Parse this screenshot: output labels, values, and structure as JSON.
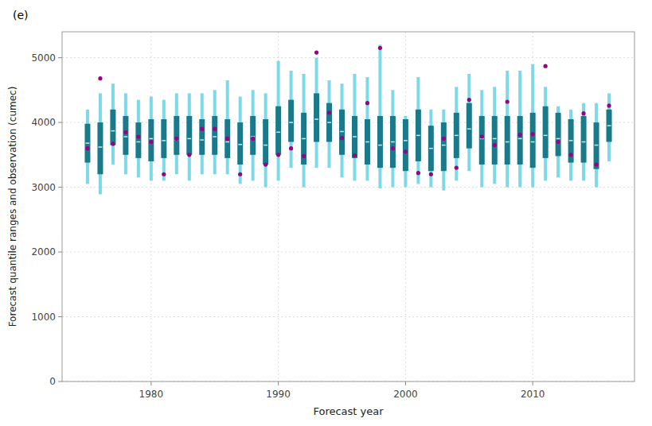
{
  "chart_data": {
    "type": "quantile_range",
    "title": "(e)",
    "x_label": "Forecast year",
    "y_label": "Forecast quantile ranges and observation (cumec)",
    "x": [
      1975,
      1976,
      1977,
      1978,
      1979,
      1980,
      1981,
      1982,
      1983,
      1984,
      1985,
      1986,
      1987,
      1988,
      1989,
      1990,
      1991,
      1992,
      1993,
      1994,
      1995,
      1996,
      1997,
      1998,
      1999,
      2000,
      2001,
      2002,
      2003,
      2004,
      2005,
      2006,
      2007,
      2008,
      2009,
      2010,
      2011,
      2012,
      2013,
      2014,
      2015,
      2016
    ],
    "xlim": [
      1973,
      2018
    ],
    "xticks": [
      1980,
      1990,
      2000,
      2010
    ],
    "ylim": [
      0,
      5400
    ],
    "yticks": [
      0,
      1000,
      2000,
      3000,
      4000,
      5000
    ],
    "grid": true,
    "series": [
      {
        "type": "range",
        "color": "#7fd8e8",
        "low": [
          3050,
          2890,
          3350,
          3200,
          3150,
          3100,
          3100,
          3200,
          3100,
          3200,
          3200,
          3200,
          3050,
          3100,
          3000,
          3100,
          3300,
          3000,
          3300,
          3300,
          3150,
          3100,
          3100,
          2980,
          3000,
          3000,
          3050,
          3000,
          2950,
          3100,
          3250,
          3000,
          3050,
          3000,
          3000,
          3000,
          3100,
          3150,
          3100,
          3100,
          3000,
          3400
        ],
        "high": [
          4200,
          4450,
          4600,
          4450,
          4350,
          4400,
          4350,
          4450,
          4450,
          4450,
          4500,
          4650,
          4400,
          4500,
          4450,
          4950,
          4800,
          4750,
          5000,
          4650,
          4600,
          4750,
          4700,
          5200,
          4500,
          4100,
          4700,
          4200,
          4200,
          4550,
          4750,
          4500,
          4550,
          4800,
          4800,
          4900,
          4550,
          4250,
          4200,
          4300,
          4300,
          4450
        ]
      },
      {
        "type": "range",
        "color": "#1a7a8a",
        "low": [
          3380,
          3200,
          3650,
          3500,
          3450,
          3400,
          3450,
          3500,
          3500,
          3500,
          3500,
          3450,
          3350,
          3500,
          3350,
          3500,
          3700,
          3350,
          3700,
          3700,
          3500,
          3450,
          3350,
          3300,
          3300,
          3250,
          3400,
          3250,
          3250,
          3450,
          3600,
          3350,
          3350,
          3350,
          3350,
          3300,
          3450,
          3480,
          3380,
          3380,
          3280,
          3700
        ],
        "high": [
          3980,
          4000,
          4200,
          4100,
          4000,
          4050,
          4050,
          4100,
          4100,
          4050,
          4100,
          4050,
          4000,
          4100,
          4050,
          4250,
          4350,
          4150,
          4450,
          4300,
          4200,
          4100,
          4050,
          4100,
          4100,
          4050,
          4200,
          3950,
          4000,
          4150,
          4300,
          4100,
          4100,
          4100,
          4100,
          4150,
          4250,
          4150,
          4050,
          4100,
          4000,
          4200
        ]
      },
      {
        "type": "tick",
        "color": "#bbeeee",
        "values": [
          3680,
          3620,
          3870,
          3780,
          3700,
          3750,
          3720,
          3730,
          3750,
          3730,
          3780,
          3700,
          3660,
          3780,
          3650,
          3850,
          4000,
          3750,
          4050,
          4000,
          3860,
          3780,
          3700,
          3650,
          3700,
          3720,
          3800,
          3600,
          3650,
          3800,
          3900,
          3750,
          3750,
          3700,
          3750,
          3700,
          3800,
          3750,
          3720,
          3700,
          3650,
          3950
        ]
      },
      {
        "type": "scatter",
        "color": "#9b0085",
        "marker": "circle",
        "values": [
          3600,
          4680,
          3670,
          3850,
          3780,
          3700,
          3200,
          3750,
          3500,
          3900,
          3900,
          3750,
          3200,
          3750,
          3350,
          3500,
          3600,
          3480,
          5080,
          4150,
          3760,
          3490,
          4300,
          5150,
          3600,
          3550,
          3220,
          3200,
          3750,
          3300,
          4350,
          3780,
          3650,
          4320,
          3810,
          3820,
          4870,
          3700,
          3500,
          4140,
          3350,
          4260
        ]
      }
    ]
  }
}
